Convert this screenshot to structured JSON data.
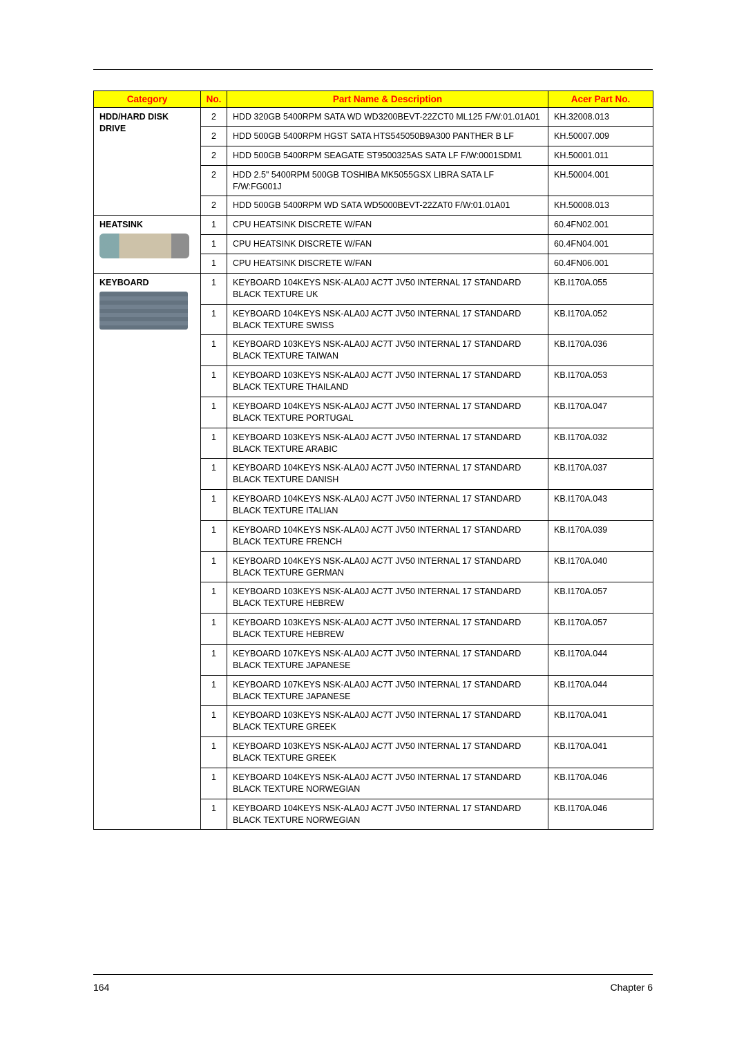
{
  "headers": {
    "category": "Category",
    "no": "No.",
    "desc": "Part Name & Description",
    "part": "Acer Part No."
  },
  "colors": {
    "header_bg": "#ffff00",
    "header_fg": "#ff0000",
    "border": "#000000",
    "text": "#000000"
  },
  "footer": {
    "page": "164",
    "chapter": "Chapter 6"
  },
  "rows": [
    {
      "cat": "HDD/HARD DISK DRIVE",
      "catType": "top",
      "no": "2",
      "desc": "HDD 320GB 5400RPM SATA WD WD3200BEVT-22ZCT0 ML125 F/W:01.01A01",
      "part": "KH.32008.013"
    },
    {
      "cat": "",
      "catType": "mid",
      "no": "2",
      "desc": "HDD 500GB 5400RPM HGST SATA HTS545050B9A300 PANTHER B LF",
      "part": "KH.50007.009"
    },
    {
      "cat": "",
      "catType": "mid",
      "no": "2",
      "desc": "HDD 500GB 5400RPM SEAGATE ST9500325AS SATA LF F/W:0001SDM1",
      "part": "KH.50001.011"
    },
    {
      "cat": "",
      "catType": "mid",
      "no": "2",
      "desc": "HDD 2.5\" 5400RPM 500GB TOSHIBA MK5055GSX LIBRA SATA LF F/W:FG001J",
      "part": "KH.50004.001"
    },
    {
      "cat": "",
      "catType": "bot",
      "no": "2",
      "desc": "HDD 500GB 5400RPM WD SATA WD5000BEVT-22ZAT0 F/W:01.01A01",
      "part": "KH.50008.013"
    },
    {
      "cat": "HEATSINK",
      "catType": "top-img",
      "img": "heatsink",
      "no": "1",
      "desc": "CPU HEATSINK DISCRETE W/FAN",
      "part": "60.4FN02.001"
    },
    {
      "cat": "",
      "catType": "mid",
      "no": "1",
      "desc": "CPU HEATSINK DISCRETE W/FAN",
      "part": "60.4FN04.001"
    },
    {
      "cat": "",
      "catType": "bot",
      "no": "1",
      "desc": "CPU HEATSINK DISCRETE W/FAN",
      "part": "60.4FN06.001"
    },
    {
      "cat": "KEYBOARD",
      "catType": "top-img",
      "img": "keyboard",
      "no": "1",
      "desc": "KEYBOARD 104KEYS NSK-ALA0J AC7T JV50 INTERNAL 17 STANDARD BLACK TEXTURE UK",
      "part": "KB.I170A.055"
    },
    {
      "cat": "",
      "catType": "mid",
      "no": "1",
      "desc": "KEYBOARD 104KEYS NSK-ALA0J AC7T JV50 INTERNAL 17 STANDARD BLACK TEXTURE SWISS",
      "part": "KB.I170A.052"
    },
    {
      "cat": "",
      "catType": "mid",
      "no": "1",
      "desc": "KEYBOARD 103KEYS NSK-ALA0J AC7T JV50 INTERNAL 17 STANDARD BLACK TEXTURE TAIWAN",
      "part": "KB.I170A.036"
    },
    {
      "cat": "",
      "catType": "mid",
      "no": "1",
      "desc": "KEYBOARD 103KEYS NSK-ALA0J AC7T JV50 INTERNAL 17 STANDARD BLACK TEXTURE THAILAND",
      "part": "KB.I170A.053"
    },
    {
      "cat": "",
      "catType": "mid",
      "no": "1",
      "desc": "KEYBOARD 104KEYS NSK-ALA0J AC7T JV50 INTERNAL 17 STANDARD BLACK TEXTURE PORTUGAL",
      "part": "KB.I170A.047"
    },
    {
      "cat": "",
      "catType": "mid",
      "no": "1",
      "desc": "KEYBOARD 103KEYS NSK-ALA0J AC7T JV50 INTERNAL 17 STANDARD BLACK TEXTURE ARABIC",
      "part": "KB.I170A.032"
    },
    {
      "cat": "",
      "catType": "mid",
      "no": "1",
      "desc": "KEYBOARD 104KEYS NSK-ALA0J AC7T JV50 INTERNAL 17 STANDARD BLACK TEXTURE DANISH",
      "part": "KB.I170A.037"
    },
    {
      "cat": "",
      "catType": "mid",
      "no": "1",
      "desc": "KEYBOARD 104KEYS NSK-ALA0J AC7T JV50 INTERNAL 17 STANDARD BLACK TEXTURE ITALIAN",
      "part": "KB.I170A.043"
    },
    {
      "cat": "",
      "catType": "mid",
      "no": "1",
      "desc": "KEYBOARD 104KEYS NSK-ALA0J AC7T JV50 INTERNAL 17 STANDARD BLACK TEXTURE FRENCH",
      "part": "KB.I170A.039"
    },
    {
      "cat": "",
      "catType": "mid",
      "no": "1",
      "desc": "KEYBOARD 104KEYS NSK-ALA0J AC7T JV50 INTERNAL 17 STANDARD BLACK TEXTURE GERMAN",
      "part": "KB.I170A.040"
    },
    {
      "cat": "",
      "catType": "mid",
      "no": "1",
      "desc": "KEYBOARD 103KEYS NSK-ALA0J AC7T JV50 INTERNAL 17 STANDARD BLACK TEXTURE HEBREW",
      "part": "KB.I170A.057"
    },
    {
      "cat": "",
      "catType": "mid",
      "no": "1",
      "desc": "KEYBOARD 103KEYS NSK-ALA0J AC7T JV50 INTERNAL 17 STANDARD BLACK TEXTURE HEBREW",
      "part": "KB.I170A.057"
    },
    {
      "cat": "",
      "catType": "mid",
      "no": "1",
      "desc": "KEYBOARD 107KEYS NSK-ALA0J AC7T JV50 INTERNAL 17 STANDARD BLACK TEXTURE JAPANESE",
      "part": "KB.I170A.044"
    },
    {
      "cat": "",
      "catType": "mid",
      "no": "1",
      "desc": "KEYBOARD 107KEYS NSK-ALA0J AC7T JV50 INTERNAL 17 STANDARD BLACK TEXTURE JAPANESE",
      "part": "KB.I170A.044"
    },
    {
      "cat": "",
      "catType": "mid",
      "no": "1",
      "desc": "KEYBOARD 103KEYS NSK-ALA0J AC7T JV50 INTERNAL 17 STANDARD BLACK TEXTURE GREEK",
      "part": "KB.I170A.041"
    },
    {
      "cat": "",
      "catType": "mid",
      "no": "1",
      "desc": "KEYBOARD 103KEYS NSK-ALA0J AC7T JV50 INTERNAL 17 STANDARD BLACK TEXTURE GREEK",
      "part": "KB.I170A.041"
    },
    {
      "cat": "",
      "catType": "mid",
      "no": "1",
      "desc": "KEYBOARD 104KEYS NSK-ALA0J AC7T JV50 INTERNAL 17 STANDARD BLACK TEXTURE NORWEGIAN",
      "part": "KB.I170A.046"
    },
    {
      "cat": "",
      "catType": "bot",
      "no": "1",
      "desc": "KEYBOARD 104KEYS NSK-ALA0J AC7T JV50 INTERNAL 17 STANDARD BLACK TEXTURE NORWEGIAN",
      "part": "KB.I170A.046"
    }
  ]
}
